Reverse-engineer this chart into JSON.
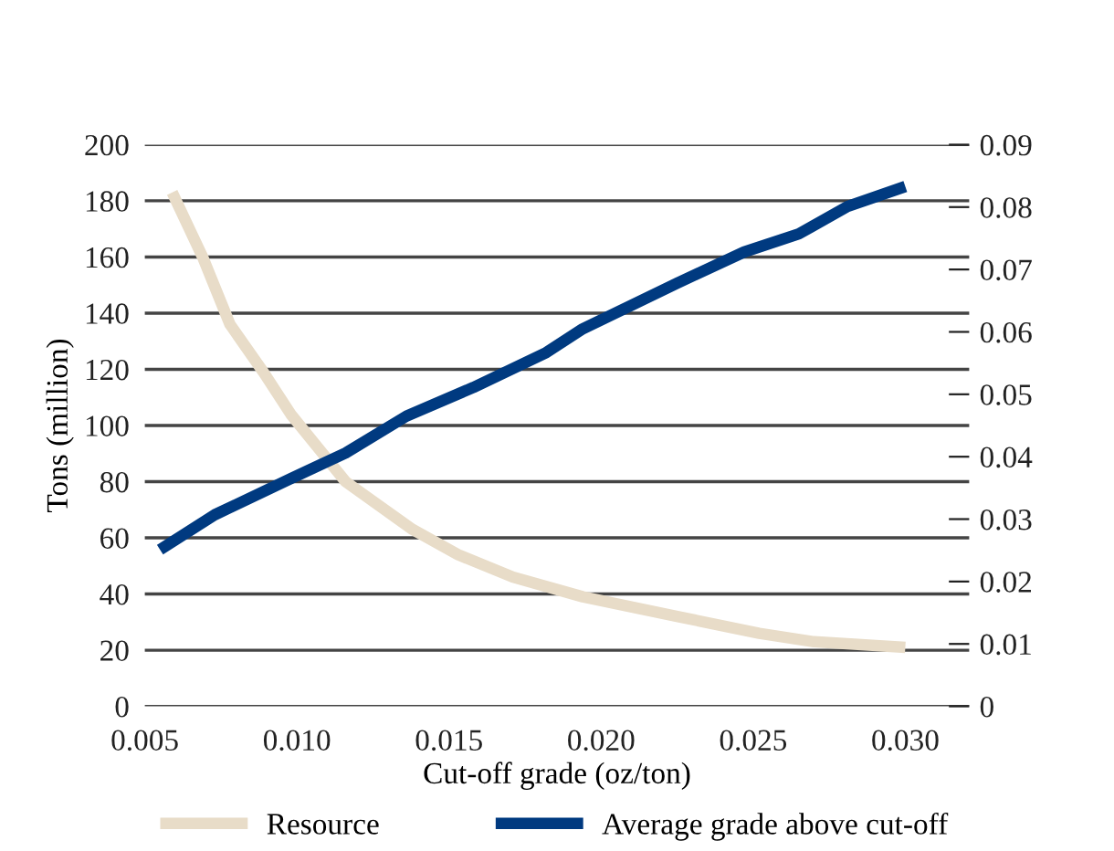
{
  "chart_data": {
    "type": "line",
    "xlabel": "Cut-off grade (oz/ton)",
    "ylabel": "Tons (million)",
    "xlim": [
      0.005,
      0.0321
    ],
    "xticks": [
      {
        "value": 0.005,
        "label": "0.005"
      },
      {
        "value": 0.01,
        "label": "0.010"
      },
      {
        "value": 0.015,
        "label": "0.015"
      },
      {
        "value": 0.02,
        "label": "0.020"
      },
      {
        "value": 0.025,
        "label": "0.025"
      },
      {
        "value": 0.03,
        "label": "0.030"
      }
    ],
    "ylim": [
      0,
      200
    ],
    "yticks": [
      0,
      20,
      40,
      60,
      80,
      100,
      120,
      140,
      160,
      180,
      200
    ],
    "y2lim": [
      0,
      0.09
    ],
    "y2ticks": [
      0,
      0.01,
      0.02,
      0.03,
      0.04,
      0.05,
      0.06,
      0.07,
      0.08,
      0.09
    ],
    "grid": "y",
    "legend": "bottom",
    "marker": "none",
    "line_style": "solid",
    "series": [
      {
        "name": "Resource",
        "color": "#e8dcc8",
        "x": [
          0.0059,
          0.0069,
          0.0078,
          0.0089,
          0.0098,
          0.0116,
          0.0138,
          0.0153,
          0.0171,
          0.0194,
          0.0225,
          0.0252,
          0.027,
          0.03
        ],
        "values": [
          183,
          160,
          136,
          119,
          104,
          80,
          63,
          54,
          46,
          39,
          32,
          26,
          23,
          21
        ]
      },
      {
        "name": "Average grade above cut-off",
        "color": "#003a80",
        "axis": "y2",
        "x": [
          0.0055,
          0.0073,
          0.0098,
          0.0116,
          0.0136,
          0.0158,
          0.0182,
          0.0194,
          0.0225,
          0.0247,
          0.0265,
          0.0281,
          0.03
        ],
        "values": [
          0.0251,
          0.0307,
          0.0365,
          0.0406,
          0.0465,
          0.0511,
          0.0567,
          0.0605,
          0.0678,
          0.0728,
          0.0757,
          0.0801,
          0.0833
        ]
      }
    ]
  }
}
